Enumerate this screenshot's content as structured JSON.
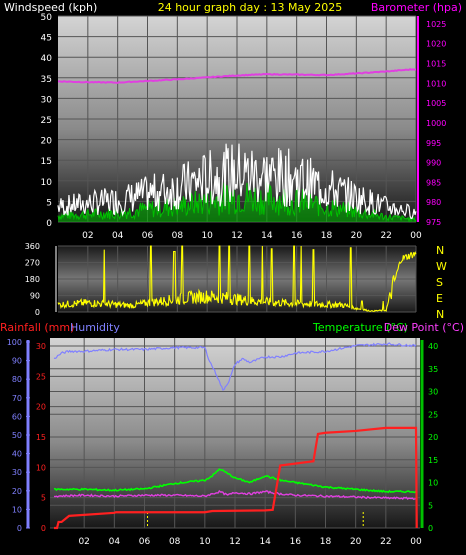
{
  "colors": {
    "background": "#000000",
    "wind": "#ffffff",
    "gust": "#00c000",
    "barometer": "#e040e0",
    "direction": "#ffff00",
    "rainfall": "#ff2020",
    "humidity": "#8080ff",
    "temperature": "#00ff00",
    "dewpoint": "#e040e0",
    "tick_wind": "#ffffff",
    "tick_baro": "#ff00ff",
    "tick_rain": "#ff2020",
    "tick_hum": "#8080ff",
    "tick_temp": "#00ff00",
    "title": "#ffff00",
    "direction_letters": "#ffff00",
    "hour_ticks": "#ffffff",
    "rain_markers": "#ffff00"
  },
  "chart_data": [
    {
      "name": "wind-barometer",
      "type": "line",
      "title": "24 hour graph day : 13 May 2025",
      "left_axis_label": "Windspeed (kph)",
      "right_axis_label": "Barometer (hpa)",
      "x_ticks": [
        "02",
        "04",
        "06",
        "08",
        "10",
        "12",
        "14",
        "16",
        "18",
        "20",
        "22",
        "00"
      ],
      "left_ticks": [
        "0",
        "5",
        "10",
        "15",
        "20",
        "25",
        "30",
        "35",
        "40",
        "45",
        "50"
      ],
      "left_range": [
        0,
        50
      ],
      "right_ticks": [
        "975",
        "980",
        "985",
        "990",
        "995",
        "1000",
        "1005",
        "1010",
        "1015",
        "1020",
        "1025"
      ],
      "right_range": [
        975,
        1027
      ],
      "barometer": {
        "x": [
          0,
          2,
          4,
          6,
          8,
          10,
          12,
          14,
          16,
          18,
          20,
          22,
          24
        ],
        "y": [
          1010.5,
          1010.3,
          1010.2,
          1010.6,
          1011,
          1011.5,
          1012,
          1012.3,
          1012.2,
          1012.1,
          1012.5,
          1013,
          1013.6
        ]
      },
      "wind_profile": {
        "x": [
          0,
          2,
          4,
          6,
          8,
          10,
          12,
          14,
          16,
          18,
          20,
          22,
          24
        ],
        "y": [
          2.5,
          3,
          3.5,
          5,
          6,
          8,
          10,
          9,
          8,
          6,
          4,
          2,
          1
        ]
      },
      "gust_profile": {
        "x": [
          0,
          2,
          4,
          6,
          8,
          10,
          12,
          14,
          16,
          18,
          20,
          22,
          24
        ],
        "y": [
          5,
          6,
          7,
          9,
          11,
          14,
          16,
          15,
          14,
          11,
          8,
          5,
          3
        ]
      }
    },
    {
      "name": "wind-direction",
      "type": "line",
      "left_ticks": [
        "0",
        "90",
        "180",
        "270",
        "360"
      ],
      "left_range": [
        0,
        360
      ],
      "direction_letters": [
        "N",
        "W",
        "S",
        "E",
        "N"
      ],
      "baseline_x": [
        0,
        1,
        2,
        3,
        4,
        5,
        6,
        7,
        8,
        9,
        10,
        11,
        12,
        13,
        14,
        15,
        16,
        17,
        18,
        19,
        20,
        21,
        22,
        23,
        24
      ],
      "baseline_y": [
        40,
        45,
        50,
        45,
        40,
        35,
        50,
        60,
        70,
        80,
        85,
        80,
        70,
        60,
        55,
        50,
        45,
        45,
        40,
        40,
        20,
        5,
        10,
        290,
        320
      ]
    },
    {
      "name": "rain-temperature",
      "type": "line",
      "left_label_1": "Rainfall (mm)",
      "left_label_2": "Humidity",
      "right_label_1": "Temperature (°C)",
      "right_label_2": "Dew Point (°C)",
      "x_ticks": [
        "02",
        "04",
        "06",
        "08",
        "10",
        "12",
        "14",
        "16",
        "18",
        "20",
        "22",
        "00"
      ],
      "hum_ticks": [
        "0",
        "10",
        "20",
        "30",
        "40",
        "50",
        "60",
        "70",
        "80",
        "90",
        "100"
      ],
      "rain_ticks": [
        "0",
        "5",
        "10",
        "15",
        "20",
        "25",
        "30"
      ],
      "rain_range": [
        0,
        30
      ],
      "temp_ticks": [
        "0",
        "5",
        "10",
        "15",
        "20",
        "25",
        "30",
        "35",
        "40"
      ],
      "temp_range": [
        0,
        40
      ],
      "humidity": {
        "x": [
          0,
          0.5,
          1,
          2,
          4,
          6,
          8,
          10,
          10.3,
          10.8,
          11.2,
          11.6,
          12,
          12.5,
          13,
          14,
          15,
          16,
          18,
          20,
          22,
          24
        ],
        "y": [
          91,
          94,
          95,
          95,
          96,
          96,
          97,
          97,
          90,
          82,
          74,
          79,
          88,
          91,
          89,
          92,
          92,
          94,
          95,
          98,
          99,
          98
        ]
      },
      "rainfall": {
        "x": [
          0,
          0.2,
          0.3,
          0.5,
          1,
          4,
          4.1,
          6,
          10,
          10.5,
          14,
          14.5,
          15,
          17.2,
          17.5,
          18,
          20,
          22,
          23.8,
          24,
          24.05
        ],
        "y": [
          0,
          0,
          1,
          1,
          2,
          2.5,
          2.6,
          2.6,
          2.6,
          2.8,
          2.9,
          3,
          10.3,
          11,
          15.5,
          15.7,
          16,
          16.5,
          16.5,
          16.5,
          0
        ]
      },
      "temperature": {
        "x": [
          0,
          2,
          4,
          6,
          8,
          10,
          10.5,
          11,
          11.5,
          12,
          13,
          14,
          15,
          16,
          18,
          20,
          22,
          24
        ],
        "y": [
          8.5,
          8.5,
          8.3,
          8.6,
          9.8,
          10.5,
          11.5,
          13,
          12,
          11,
          10,
          11.5,
          10.5,
          10,
          9,
          8.5,
          8,
          8
        ]
      },
      "dewpoint": {
        "x": [
          0,
          2,
          4,
          6,
          8,
          10,
          10.5,
          11,
          11.5,
          12,
          13,
          14,
          15,
          16,
          18,
          20,
          22,
          24
        ],
        "y": [
          7,
          7.2,
          7,
          7.2,
          7.2,
          7,
          7.5,
          8,
          7.2,
          7.8,
          7.5,
          8,
          7.5,
          7.2,
          7,
          6.8,
          6.6,
          6.5
        ]
      },
      "rain_markers_x": [
        6.2,
        20.5
      ]
    }
  ]
}
